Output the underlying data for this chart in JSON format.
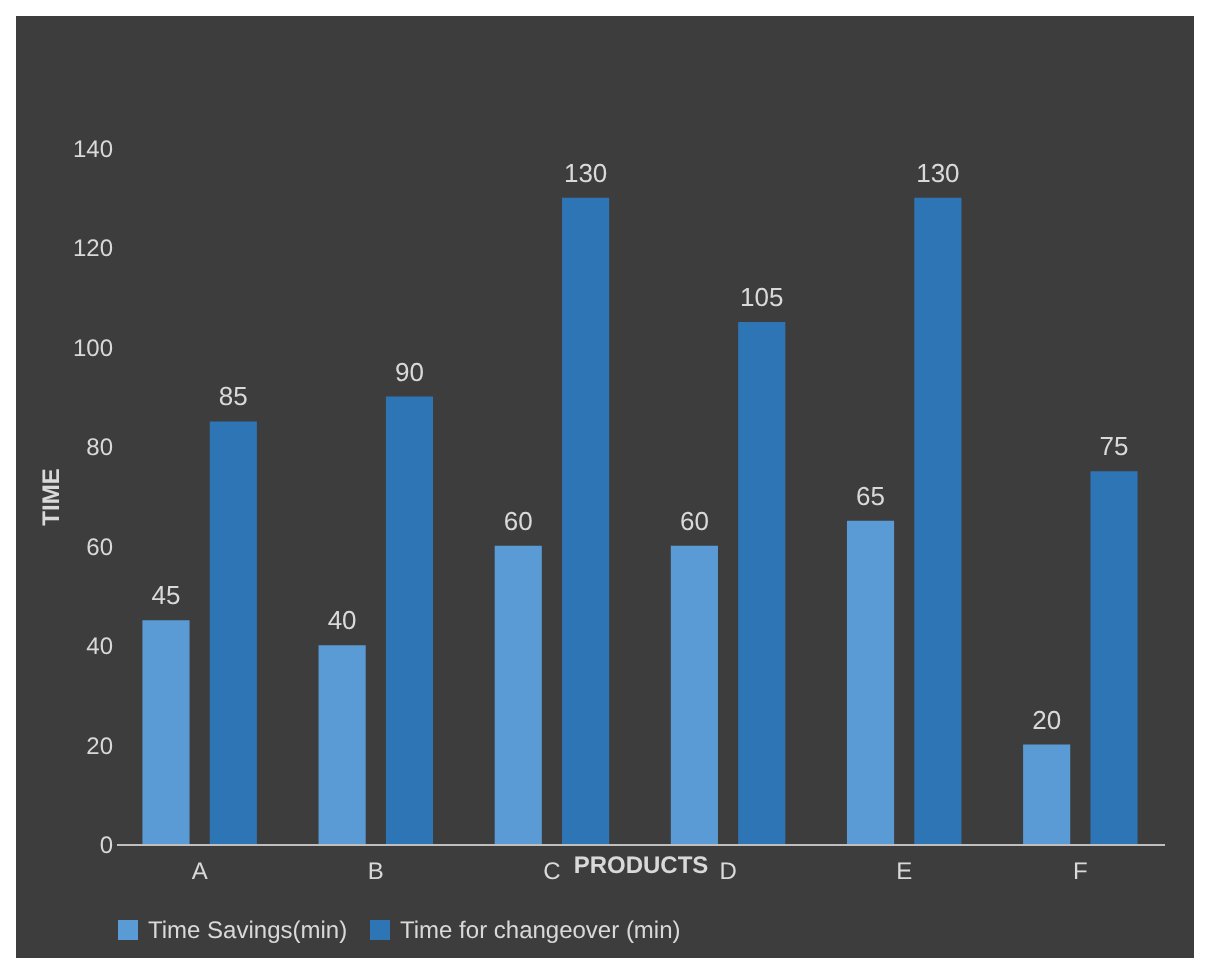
{
  "chart_data": {
    "type": "bar",
    "xlabel": "PRODUCTS",
    "ylabel": "TIME",
    "categories": [
      "A",
      "B",
      "C",
      "D",
      "E",
      "F"
    ],
    "series": [
      {
        "name": "Time Savings(min)",
        "color": "#5b9bd5",
        "values": [
          45,
          40,
          60,
          60,
          65,
          20
        ]
      },
      {
        "name": "Time for changeover (min)",
        "color": "#2e75b6",
        "values": [
          85,
          90,
          130,
          105,
          130,
          75
        ]
      }
    ],
    "ylim": [
      0,
      140
    ],
    "yticks": [
      0,
      20,
      40,
      60,
      80,
      100,
      120,
      140
    ],
    "grid": false,
    "legend": "bottom",
    "data_labels": true
  }
}
